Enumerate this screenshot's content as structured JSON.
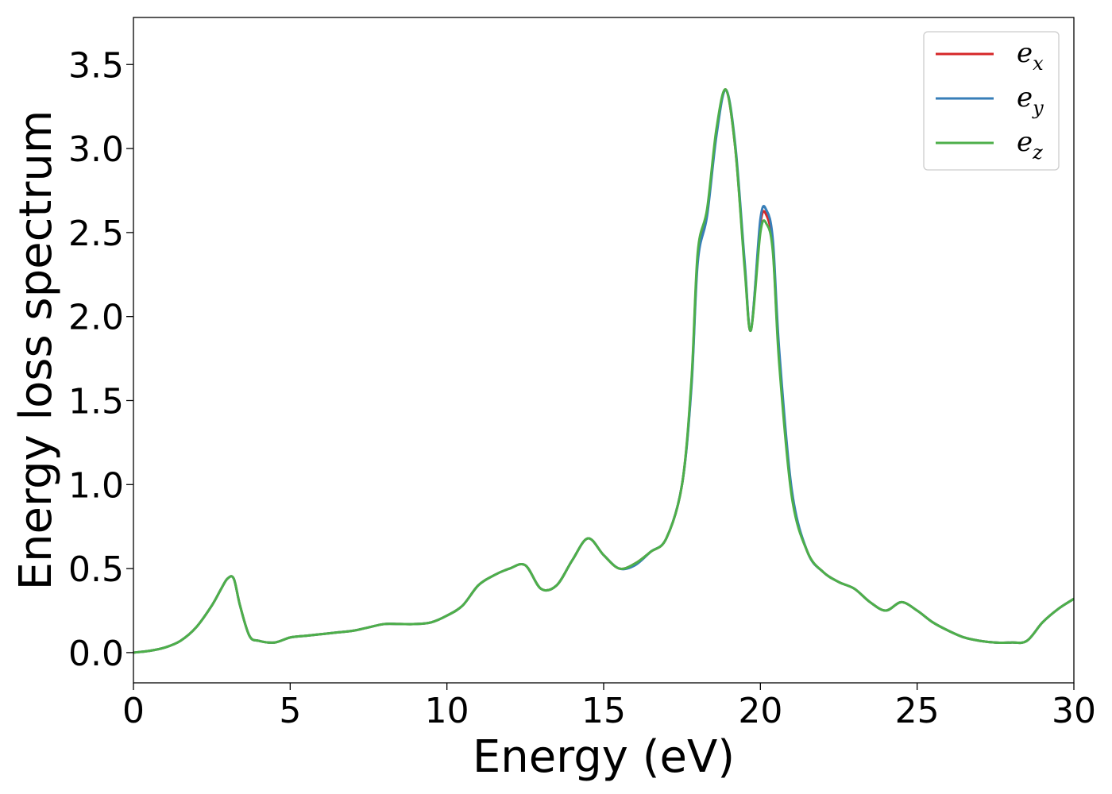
{
  "chart_data": {
    "type": "line",
    "title": "",
    "xlabel": "Energy (eV)",
    "ylabel": "Energy loss spectrum",
    "xlim": [
      0,
      30
    ],
    "ylim": [
      -0.18,
      3.78
    ],
    "xticks": [
      {
        "value": 0,
        "label": "0"
      },
      {
        "value": 5,
        "label": "5"
      },
      {
        "value": 10,
        "label": "10"
      },
      {
        "value": 15,
        "label": "15"
      },
      {
        "value": 20,
        "label": "20"
      },
      {
        "value": 25,
        "label": "25"
      },
      {
        "value": 30,
        "label": "30"
      }
    ],
    "yticks": [
      {
        "value": 0.0,
        "label": "0.0"
      },
      {
        "value": 0.5,
        "label": "0.5"
      },
      {
        "value": 1.0,
        "label": "1.0"
      },
      {
        "value": 1.5,
        "label": "1.5"
      },
      {
        "value": 2.0,
        "label": "2.0"
      },
      {
        "value": 2.5,
        "label": "2.5"
      },
      {
        "value": 3.0,
        "label": "3.0"
      },
      {
        "value": 3.5,
        "label": "3.5"
      }
    ],
    "grid": false,
    "legend_position": "top-right",
    "x": [
      0,
      0.5,
      1.0,
      1.5,
      2.0,
      2.5,
      2.8,
      3.0,
      3.2,
      3.4,
      3.7,
      4.0,
      4.5,
      5.0,
      5.5,
      6.0,
      6.5,
      7.0,
      7.5,
      8.0,
      8.5,
      9.0,
      9.5,
      10.0,
      10.5,
      11.0,
      11.5,
      12.0,
      12.5,
      13.0,
      13.5,
      14.0,
      14.5,
      15.0,
      15.5,
      16.0,
      16.5,
      17.0,
      17.5,
      17.8,
      18.0,
      18.3,
      18.6,
      18.9,
      19.2,
      19.5,
      19.7,
      20.0,
      20.2,
      20.4,
      20.6,
      21.0,
      21.5,
      22.0,
      22.5,
      23.0,
      23.5,
      24.0,
      24.5,
      25.0,
      25.5,
      26.0,
      26.5,
      27.0,
      27.5,
      28.0,
      28.5,
      29.0,
      29.5,
      30.0
    ],
    "series": [
      {
        "name": "e_x",
        "label_base": "e",
        "label_sub": "x",
        "color": "#d62728",
        "values": [
          0,
          0.01,
          0.03,
          0.07,
          0.15,
          0.28,
          0.38,
          0.44,
          0.44,
          0.28,
          0.1,
          0.07,
          0.06,
          0.09,
          0.1,
          0.11,
          0.12,
          0.13,
          0.15,
          0.17,
          0.17,
          0.17,
          0.18,
          0.22,
          0.28,
          0.4,
          0.46,
          0.5,
          0.52,
          0.38,
          0.4,
          0.55,
          0.68,
          0.58,
          0.5,
          0.53,
          0.6,
          0.68,
          1.0,
          1.6,
          2.35,
          2.62,
          3.1,
          3.35,
          3.0,
          2.3,
          1.92,
          2.55,
          2.6,
          2.4,
          1.75,
          0.95,
          0.6,
          0.48,
          0.42,
          0.38,
          0.3,
          0.25,
          0.3,
          0.25,
          0.18,
          0.13,
          0.09,
          0.07,
          0.06,
          0.06,
          0.07,
          0.18,
          0.26,
          0.32
        ]
      },
      {
        "name": "e_y",
        "label_base": "e",
        "label_sub": "y",
        "color": "#377eb8",
        "values": [
          0,
          0.01,
          0.03,
          0.07,
          0.15,
          0.28,
          0.38,
          0.44,
          0.44,
          0.28,
          0.1,
          0.07,
          0.06,
          0.09,
          0.1,
          0.11,
          0.12,
          0.13,
          0.15,
          0.17,
          0.17,
          0.17,
          0.18,
          0.22,
          0.28,
          0.4,
          0.46,
          0.5,
          0.52,
          0.38,
          0.4,
          0.55,
          0.68,
          0.58,
          0.5,
          0.52,
          0.6,
          0.68,
          1.0,
          1.58,
          2.32,
          2.6,
          3.08,
          3.35,
          3.02,
          2.32,
          1.92,
          2.58,
          2.63,
          2.45,
          1.8,
          0.97,
          0.6,
          0.48,
          0.42,
          0.38,
          0.3,
          0.25,
          0.3,
          0.25,
          0.18,
          0.13,
          0.09,
          0.07,
          0.06,
          0.06,
          0.07,
          0.18,
          0.26,
          0.32
        ]
      },
      {
        "name": "e_z",
        "label_base": "e",
        "label_sub": "z",
        "color": "#4daf4a",
        "values": [
          0,
          0.01,
          0.03,
          0.07,
          0.15,
          0.28,
          0.38,
          0.44,
          0.44,
          0.28,
          0.1,
          0.07,
          0.06,
          0.09,
          0.1,
          0.11,
          0.12,
          0.13,
          0.15,
          0.17,
          0.17,
          0.17,
          0.18,
          0.22,
          0.28,
          0.4,
          0.46,
          0.5,
          0.52,
          0.38,
          0.4,
          0.55,
          0.68,
          0.58,
          0.5,
          0.53,
          0.6,
          0.68,
          1.0,
          1.62,
          2.38,
          2.64,
          3.12,
          3.35,
          3.0,
          2.28,
          1.92,
          2.5,
          2.55,
          2.38,
          1.72,
          0.93,
          0.6,
          0.48,
          0.42,
          0.38,
          0.3,
          0.25,
          0.3,
          0.25,
          0.18,
          0.13,
          0.09,
          0.07,
          0.06,
          0.06,
          0.07,
          0.18,
          0.26,
          0.32
        ]
      }
    ]
  }
}
